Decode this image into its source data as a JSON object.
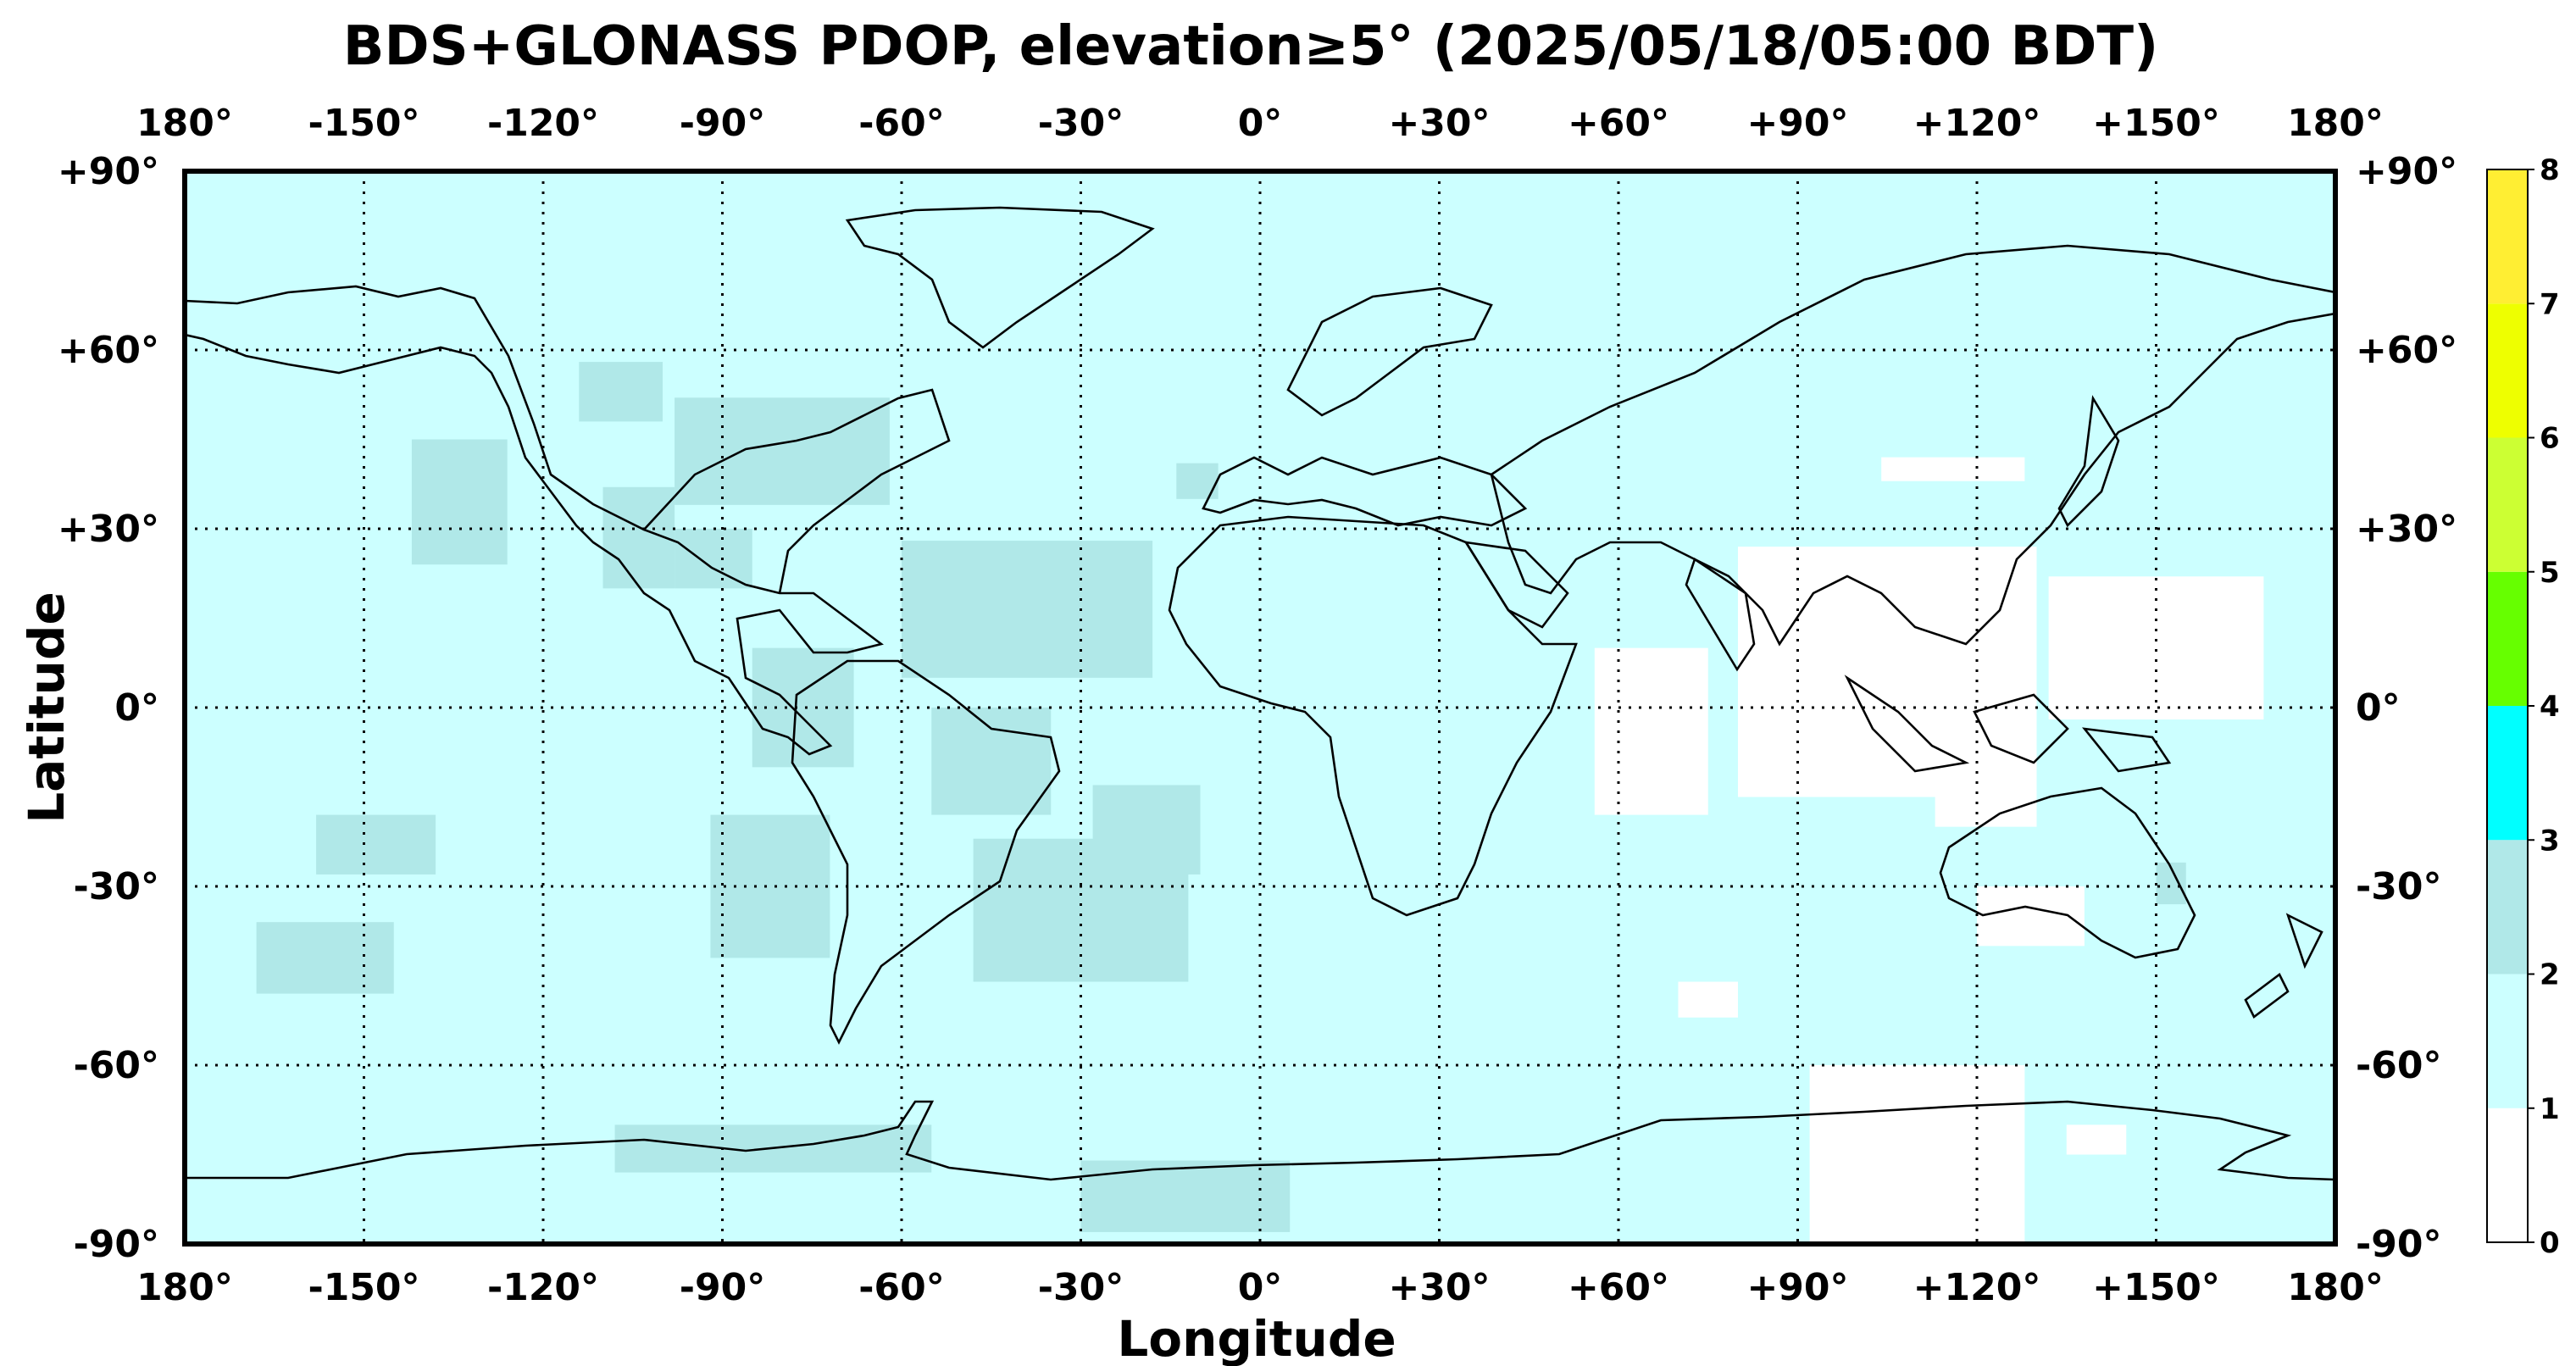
{
  "title": "BDS+GLONASS PDOP, elevation≥5° (2025/05/18/05:00 BDT)",
  "axes": {
    "xlabel": "Longitude",
    "ylabel": "Latitude",
    "lon_ticks": [
      "180°",
      "-150°",
      "-120°",
      "-90°",
      "-60°",
      "-30°",
      "0°",
      "+30°",
      "+60°",
      "+90°",
      "+120°",
      "+150°",
      "180°"
    ],
    "lat_ticks": [
      "+90°",
      "+60°",
      "+30°",
      "0°",
      "-30°",
      "-60°",
      "-90°"
    ],
    "lon_range": [
      -180,
      180
    ],
    "lat_range": [
      -90,
      90
    ],
    "grid": "dotted"
  },
  "colorbar": {
    "labels": [
      "0",
      "1",
      "2",
      "3",
      "4",
      "5",
      "6",
      "7",
      "8"
    ],
    "bins": [
      {
        "range": [
          0,
          1
        ],
        "color": "#ffffff"
      },
      {
        "range": [
          1,
          2
        ],
        "color": "#ccffff"
      },
      {
        "range": [
          2,
          3
        ],
        "color": "#b0e8e8"
      },
      {
        "range": [
          3,
          4
        ],
        "color": "#00ffff"
      },
      {
        "range": [
          4,
          5
        ],
        "color": "#66ff00"
      },
      {
        "range": [
          5,
          6
        ],
        "color": "#ccff33"
      },
      {
        "range": [
          6,
          7
        ],
        "color": "#eeff00"
      },
      {
        "range": [
          7,
          8
        ],
        "color": "#ffee33"
      }
    ]
  },
  "chart_data": {
    "type": "heatmap",
    "title": "BDS+GLONASS PDOP, elevation≥5° (2025/05/18/05:00 BDT)",
    "xlabel": "Longitude",
    "ylabel": "Latitude",
    "xlim": [
      -180,
      180
    ],
    "ylim": [
      -90,
      90
    ],
    "background_value_class": "1-2",
    "regions": [
      {
        "pdop_class": "2-3",
        "lon": [
          -142,
          -126
        ],
        "lat": [
          24,
          45
        ]
      },
      {
        "pdop_class": "2-3",
        "lon": [
          -114,
          -100
        ],
        "lat": [
          48,
          58
        ]
      },
      {
        "pdop_class": "2-3",
        "lon": [
          -98,
          -62
        ],
        "lat": [
          34,
          52
        ]
      },
      {
        "pdop_class": "2-3",
        "lon": [
          -110,
          -98
        ],
        "lat": [
          20,
          37
        ]
      },
      {
        "pdop_class": "2-3",
        "lon": [
          -98,
          -85
        ],
        "lat": [
          20,
          30
        ]
      },
      {
        "pdop_class": "2-3",
        "lon": [
          -60,
          -18
        ],
        "lat": [
          5,
          28
        ]
      },
      {
        "pdop_class": "2-3",
        "lon": [
          -55,
          -35
        ],
        "lat": [
          -18,
          0
        ]
      },
      {
        "pdop_class": "2-3",
        "lon": [
          -85,
          -68
        ],
        "lat": [
          -10,
          10
        ]
      },
      {
        "pdop_class": "2-3",
        "lon": [
          -92,
          -72
        ],
        "lat": [
          -42,
          -18
        ]
      },
      {
        "pdop_class": "2-3",
        "lon": [
          -48,
          -12
        ],
        "lat": [
          -46,
          -22
        ]
      },
      {
        "pdop_class": "2-3",
        "lon": [
          -28,
          -10
        ],
        "lat": [
          -28,
          -13
        ]
      },
      {
        "pdop_class": "2-3",
        "lon": [
          -158,
          -138
        ],
        "lat": [
          -28,
          -18
        ]
      },
      {
        "pdop_class": "2-3",
        "lon": [
          -168,
          -145
        ],
        "lat": [
          -48,
          -36
        ]
      },
      {
        "pdop_class": "2-3",
        "lon": [
          -108,
          -55
        ],
        "lat": [
          -78,
          -70
        ]
      },
      {
        "pdop_class": "2-3",
        "lon": [
          -30,
          5
        ],
        "lat": [
          -88,
          -76
        ]
      },
      {
        "pdop_class": "2-3",
        "lon": [
          -14,
          -7
        ],
        "lat": [
          35,
          41
        ]
      },
      {
        "pdop_class": "2-3",
        "lon": [
          150,
          155
        ],
        "lat": [
          -33,
          -26
        ]
      },
      {
        "pdop_class": "0-1",
        "lon": [
          56,
          75
        ],
        "lat": [
          -18,
          10
        ]
      },
      {
        "pdop_class": "0-1",
        "lon": [
          80,
          130
        ],
        "lat": [
          -15,
          27
        ]
      },
      {
        "pdop_class": "0-1",
        "lon": [
          113,
          130
        ],
        "lat": [
          -20,
          -10
        ]
      },
      {
        "pdop_class": "0-1",
        "lon": [
          132,
          168
        ],
        "lat": [
          -2,
          22
        ]
      },
      {
        "pdop_class": "0-1",
        "lon": [
          104,
          128
        ],
        "lat": [
          38,
          42
        ]
      },
      {
        "pdop_class": "0-1",
        "lon": [
          92,
          128
        ],
        "lat": [
          -90,
          -60
        ]
      },
      {
        "pdop_class": "0-1",
        "lon": [
          135,
          145
        ],
        "lat": [
          -75,
          -70
        ]
      },
      {
        "pdop_class": "0-1",
        "lon": [
          120,
          138
        ],
        "lat": [
          -40,
          -30
        ]
      },
      {
        "pdop_class": "0-1",
        "lon": [
          70,
          80
        ],
        "lat": [
          -52,
          -46
        ]
      }
    ]
  }
}
